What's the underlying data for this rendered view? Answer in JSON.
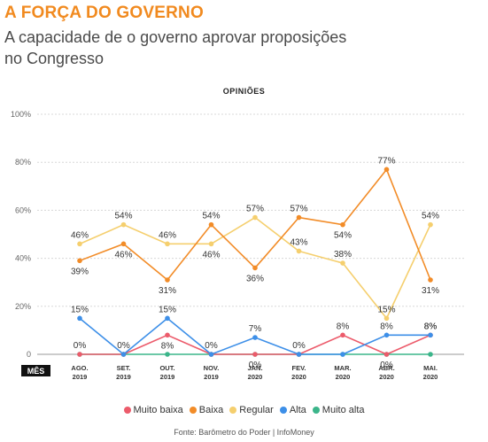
{
  "header": {
    "title": "A FORÇA DO GOVERNO",
    "subtitle": "A capacidade de o governo aprovar proposições no Congresso"
  },
  "source": "Fonte: Barômetro do Poder | InfoMoney",
  "chart_data": {
    "type": "line",
    "title": "OPINIÕES",
    "xlabel": "MÊS",
    "categories": [
      [
        "AGO.",
        "2019"
      ],
      [
        "SET.",
        "2019"
      ],
      [
        "OUT.",
        "2019"
      ],
      [
        "NOV.",
        "2019"
      ],
      [
        "JAN.",
        "2020"
      ],
      [
        "FEV.",
        "2020"
      ],
      [
        "MAR.",
        "2020"
      ],
      [
        "ABR.",
        "2020"
      ],
      [
        "MAI.",
        "2020"
      ]
    ],
    "yticks": [
      "0",
      "20%",
      "40%",
      "60%",
      "80%",
      "100%"
    ],
    "ylim": [
      0,
      100
    ],
    "grid": true,
    "legend_position": "bottom",
    "series": [
      {
        "name": "Muito baixa",
        "color": "#ec5b6b",
        "values": [
          0,
          0,
          8,
          0,
          0,
          0,
          8,
          0,
          8
        ],
        "labels": [
          "0%",
          "0%",
          "8%",
          "0%",
          "0%",
          "0%",
          "8%",
          "0%",
          "8%"
        ],
        "label_pos": [
          -1,
          -1,
          1,
          -1,
          1,
          -1,
          -1,
          1,
          -1
        ]
      },
      {
        "name": "Baixa",
        "color": "#f28c28",
        "values": [
          39,
          46,
          31,
          54,
          36,
          57,
          54,
          77,
          31
        ],
        "labels": [
          "39%",
          "46%",
          "31%",
          "54%",
          "36%",
          "57%",
          "54%",
          "77%",
          "31%"
        ],
        "label_pos": [
          1,
          1,
          1,
          -1,
          1,
          -1,
          1,
          -1,
          1
        ]
      },
      {
        "name": "Regular",
        "color": "#f5cf6e",
        "values": [
          46,
          54,
          46,
          46,
          57,
          43,
          38,
          15,
          54
        ],
        "labels": [
          "46%",
          "54%",
          "46%",
          "46%",
          "57%",
          "43%",
          "38%",
          "15%",
          "54%"
        ],
        "label_pos": [
          -1,
          -1,
          -1,
          1,
          -1,
          -1,
          -1,
          -1,
          -1
        ]
      },
      {
        "name": "Alta",
        "color": "#3d8fe8",
        "values": [
          15,
          0,
          15,
          0,
          7,
          0,
          0,
          8,
          8
        ],
        "labels": [
          "15%",
          "",
          "15%",
          "",
          "7%",
          "",
          "",
          "8%",
          "8%"
        ],
        "label_pos": [
          -1,
          -1,
          -1,
          -1,
          -1,
          -1,
          -1,
          -1,
          -1
        ]
      },
      {
        "name": "Muito alta",
        "color": "#3bb58a",
        "values": [
          0,
          0,
          0,
          0,
          0,
          0,
          0,
          0,
          0
        ],
        "labels": [
          "",
          "",
          "",
          "",
          "",
          "",
          "",
          "",
          ""
        ],
        "label_pos": [
          -1,
          -1,
          -1,
          -1,
          -1,
          -1,
          -1,
          -1,
          -1
        ]
      }
    ]
  }
}
